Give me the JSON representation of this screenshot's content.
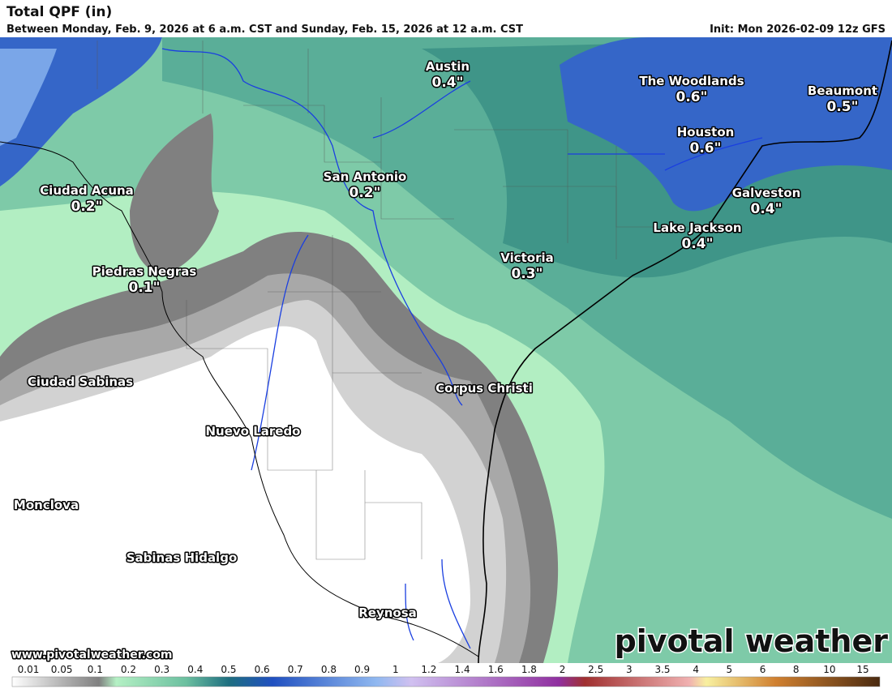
{
  "header": {
    "title": "Total QPF (in)",
    "subtitle": "Between Monday, Feb. 9, 2026 at 6 a.m. CST and Sunday, Feb. 15, 2026 at 12 a.m. CST",
    "init": "Init: Mon 2026-02-09 12z GFS"
  },
  "cities": [
    {
      "name": "Austin",
      "value": "0.4\""
    },
    {
      "name": "The Woodlands",
      "value": "0.6\""
    },
    {
      "name": "Beaumont",
      "value": "0.5\""
    },
    {
      "name": "Houston",
      "value": "0.6\""
    },
    {
      "name": "San Antonio",
      "value": "0.2\""
    },
    {
      "name": "Galveston",
      "value": "0.4\""
    },
    {
      "name": "Ciudad Acuna",
      "value": "0.2\""
    },
    {
      "name": "Lake Jackson",
      "value": "0.4\""
    },
    {
      "name": "Victoria",
      "value": "0.3\""
    },
    {
      "name": "Piedras Negras",
      "value": "0.1\""
    },
    {
      "name": "Ciudad Sabinas"
    },
    {
      "name": "Corpus Christi"
    },
    {
      "name": "Nuevo Laredo"
    },
    {
      "name": "Monclova"
    },
    {
      "name": "Sabinas Hidalgo"
    },
    {
      "name": "Reynosa"
    }
  ],
  "footer": {
    "website": "www.pivotalweather.com",
    "logo": "pivotal weather"
  },
  "legend": {
    "ticks": [
      "0.01",
      "0.05",
      "0.1",
      "0.2",
      "0.3",
      "0.4",
      "0.5",
      "0.6",
      "0.7",
      "0.8",
      "0.9",
      "1",
      "1.2",
      "1.4",
      "1.6",
      "1.8",
      "2",
      "2.5",
      "3",
      "3.5",
      "4",
      "5",
      "6",
      "8",
      "10",
      "15"
    ]
  }
}
